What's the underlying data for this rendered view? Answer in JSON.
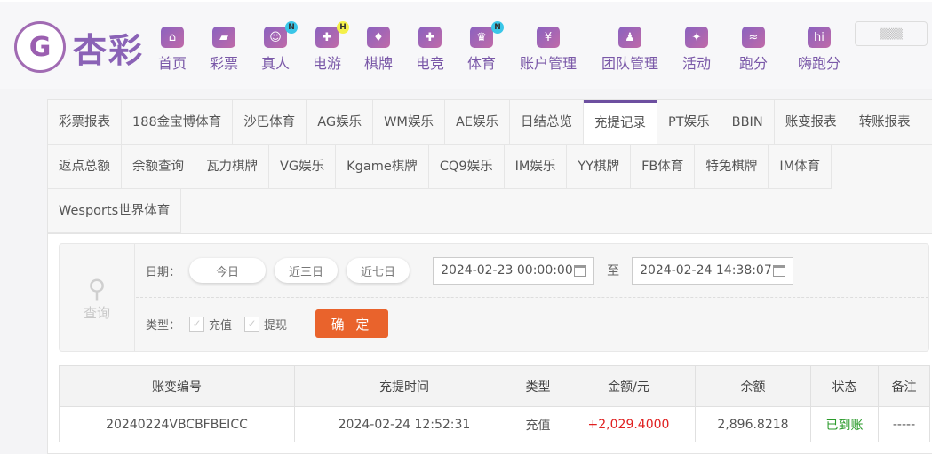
{
  "brand": {
    "logo_text": "杏彩"
  },
  "nav": [
    {
      "label": "首页",
      "icon": "home-icon"
    },
    {
      "label": "彩票",
      "icon": "ticket-icon"
    },
    {
      "label": "真人",
      "icon": "woman-icon",
      "badge": "N"
    },
    {
      "label": "电游",
      "icon": "gamepad-icon",
      "badge": "H"
    },
    {
      "label": "棋牌",
      "icon": "cards-icon"
    },
    {
      "label": "电竞",
      "icon": "gamepad-icon"
    },
    {
      "label": "体育",
      "icon": "trophy-icon",
      "badge": "N"
    },
    {
      "label": "账户管理",
      "icon": "yen-coin-icon"
    },
    {
      "label": "团队管理",
      "icon": "team-icon"
    },
    {
      "label": "活动",
      "icon": "gift-icon"
    },
    {
      "label": "跑分",
      "icon": "runner-icon"
    },
    {
      "label": "嗨跑分",
      "icon": "hi-icon"
    }
  ],
  "colors": {
    "accent": "#6d4fa0",
    "confirm": "#e9632c",
    "positive": "#e02020",
    "success": "#2a9a2a",
    "badge_n": "#3ac6e8",
    "badge_h": "#f4f04a"
  },
  "tabs": [
    "彩票报表",
    "188金宝博体育",
    "沙巴体育",
    "AG娱乐",
    "WM娱乐",
    "AE娱乐",
    "日结总览",
    "充提记录",
    "PT娱乐",
    "BBIN",
    "账变报表",
    "转账报表",
    "返点总额",
    "余额查询",
    "瓦力棋牌",
    "VG娱乐",
    "Kgame棋牌",
    "CQ9娱乐",
    "IM娱乐",
    "YY棋牌",
    "FB体育",
    "特兔棋牌",
    "IM体育",
    "Wesports世界体育"
  ],
  "active_tab": "充提记录",
  "query": {
    "side_label": "查询",
    "date_label": "日期：",
    "quick": [
      "今日",
      "近三日",
      "近七日"
    ],
    "start": "2024-02-23 00:00:00",
    "to": "至",
    "end": "2024-02-24 14:38:07",
    "type_label": "类型：",
    "types": [
      {
        "label": "充值",
        "checked": true
      },
      {
        "label": "提现",
        "checked": true
      }
    ],
    "confirm": "确 定"
  },
  "table": {
    "headers": [
      "账变编号",
      "充提时间",
      "类型",
      "金额/元",
      "余额",
      "状态",
      "备注"
    ],
    "rows": [
      [
        "20240224VBCBFBEICC",
        "2024-02-24 12:52:31",
        "充值",
        "+2,029.4000",
        "2,896.8218",
        "已到账",
        "-----"
      ]
    ]
  }
}
